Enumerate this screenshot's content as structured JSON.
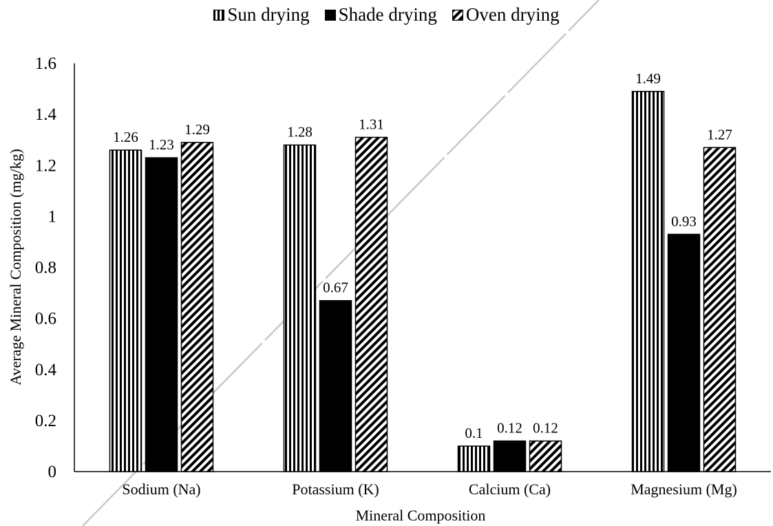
{
  "chart_data": {
    "type": "bar",
    "title": "",
    "xlabel": "Mineral Composition",
    "ylabel": "Average Mineral Composition (mg/kg)",
    "ylim": [
      0,
      1.6
    ],
    "yticks": [
      "0",
      "0.2",
      "0.4",
      "0.6",
      "0.8",
      "1",
      "1.2",
      "1.4",
      "1.6"
    ],
    "grid": false,
    "legend_position": "top",
    "categories": [
      "Sodium (Na)",
      "Potassium (K)",
      "Calcium (Ca)",
      "Magnesium (Mg)"
    ],
    "series": [
      {
        "name": "Sun drying",
        "pattern": "vertical-stripes",
        "values": [
          1.26,
          1.28,
          0.1,
          1.49
        ],
        "labels": [
          "1.26",
          "1.28",
          "0.1",
          "1.49"
        ]
      },
      {
        "name": "Shade drying",
        "pattern": "solid-black",
        "values": [
          1.23,
          0.67,
          0.12,
          0.93
        ],
        "labels": [
          "1.23",
          "0.67",
          "0.12",
          "0.93"
        ]
      },
      {
        "name": "Oven drying",
        "pattern": "diagonal-stripes",
        "values": [
          1.29,
          1.31,
          0.12,
          1.27
        ],
        "labels": [
          "1.29",
          "1.31",
          "0.12",
          "1.27"
        ]
      }
    ],
    "colors": {
      "fill": "#000000",
      "background": "#ffffff",
      "diagonal_line": "#c8c8c8"
    }
  }
}
